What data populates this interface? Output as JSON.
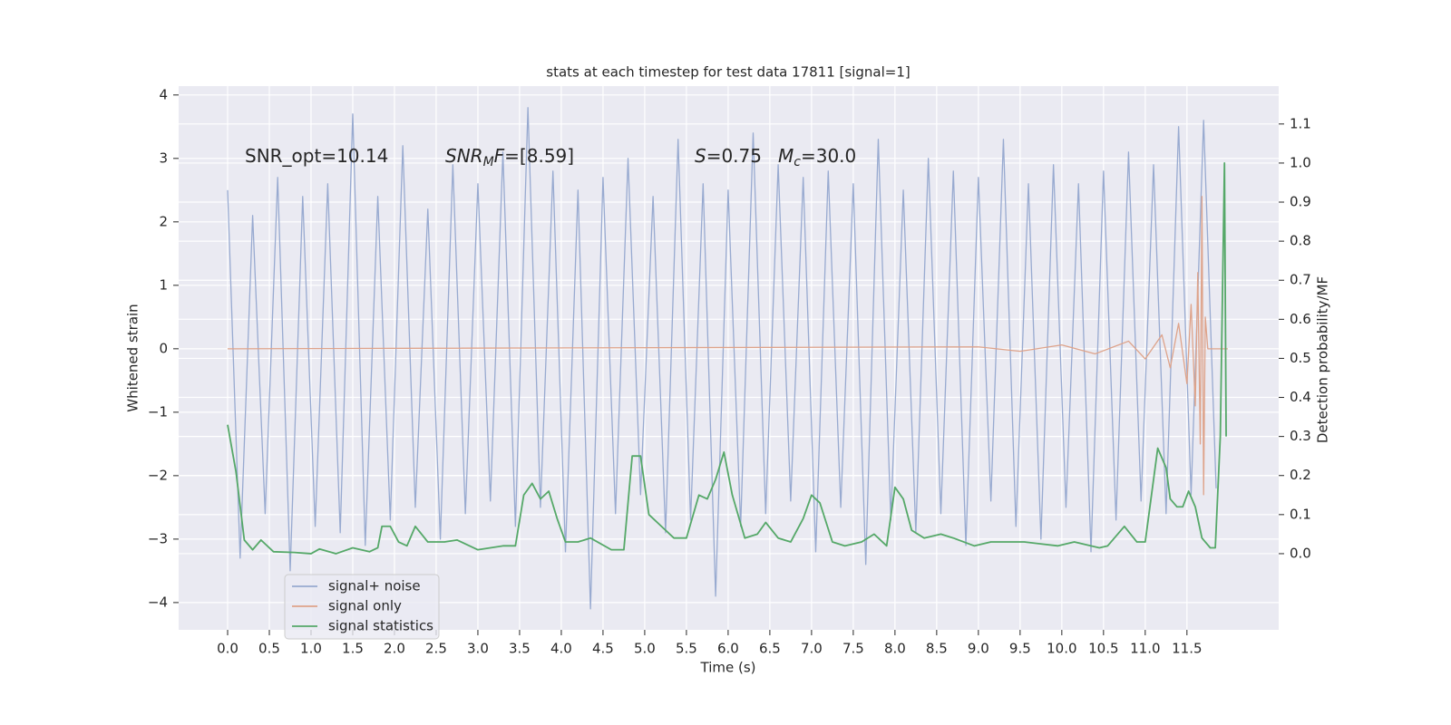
{
  "chart_data": {
    "type": "line",
    "title": "stats at each timestep for test data 17811 [signal=1]",
    "xlabel": "Time (s)",
    "ylabel": "Whitened strain",
    "y2label": "Detection probability/MF",
    "annotations": [
      {
        "parts": [
          {
            "text": "SNR_opt=10.14"
          }
        ]
      },
      {
        "parts": [
          {
            "text": "SNR",
            "italic": true
          },
          {
            "text": "M",
            "italic": true,
            "sub": true
          },
          {
            "text": "F",
            "italic": true
          },
          {
            "text": "=[8.59]"
          }
        ]
      },
      {
        "parts": [
          {
            "text": "S",
            "italic": true
          },
          {
            "text": "=0.75"
          }
        ]
      },
      {
        "parts": [
          {
            "text": "M",
            "italic": true
          },
          {
            "text": "c",
            "italic": true,
            "sub": true
          },
          {
            "text": "=30.0"
          }
        ]
      }
    ],
    "xlim": [
      -0.587,
      12.6
    ],
    "ylim": [
      -4.43,
      4.14
    ],
    "y2lim": [
      -0.195,
      1.197
    ],
    "xticks": [
      {
        "value": 0,
        "label": "0.0"
      },
      {
        "value": 0.5,
        "label": "0.5"
      },
      {
        "value": 1,
        "label": "1.0"
      },
      {
        "value": 1.5,
        "label": "1.5"
      },
      {
        "value": 2,
        "label": "2.0"
      },
      {
        "value": 2.5,
        "label": "2.5"
      },
      {
        "value": 3,
        "label": "3.0"
      },
      {
        "value": 3.5,
        "label": "3.5"
      },
      {
        "value": 4,
        "label": "4.0"
      },
      {
        "value": 4.5,
        "label": "4.5"
      },
      {
        "value": 5,
        "label": "5.0"
      },
      {
        "value": 5.5,
        "label": "5.5"
      },
      {
        "value": 6,
        "label": "6.0"
      },
      {
        "value": 6.5,
        "label": "6.5"
      },
      {
        "value": 7,
        "label": "7.0"
      },
      {
        "value": 7.5,
        "label": "7.5"
      },
      {
        "value": 8,
        "label": "8.0"
      },
      {
        "value": 8.5,
        "label": "8.5"
      },
      {
        "value": 9,
        "label": "9.0"
      },
      {
        "value": 9.5,
        "label": "9.5"
      },
      {
        "value": 10,
        "label": "10.0"
      },
      {
        "value": 10.5,
        "label": "10.5"
      },
      {
        "value": 11,
        "label": "11.0"
      },
      {
        "value": 11.5,
        "label": "11.5"
      }
    ],
    "yticks": [
      {
        "value": -4,
        "label": "−4"
      },
      {
        "value": -3,
        "label": "−3"
      },
      {
        "value": -2,
        "label": "−2"
      },
      {
        "value": -1,
        "label": "−1"
      },
      0,
      1,
      2,
      3,
      4
    ],
    "y2ticks": [
      {
        "value": 0,
        "label": "0.0"
      },
      {
        "value": 0.1,
        "label": "0.1"
      },
      {
        "value": 0.2,
        "label": "0.2"
      },
      {
        "value": 0.3,
        "label": "0.3"
      },
      {
        "value": 0.4,
        "label": "0.4"
      },
      {
        "value": 0.5,
        "label": "0.5"
      },
      {
        "value": 0.6,
        "label": "0.6"
      },
      {
        "value": 0.7,
        "label": "0.7"
      },
      {
        "value": 0.8,
        "label": "0.8"
      },
      {
        "value": 0.9,
        "label": "0.9"
      },
      {
        "value": 1,
        "label": "1.0"
      },
      {
        "value": 1.1,
        "label": "1.1"
      }
    ],
    "grid": true,
    "legend": "lower left",
    "series": [
      {
        "name": "signal+ noise",
        "color": "#98aad0",
        "x": [
          0,
          0.15,
          0.3,
          0.45,
          0.6,
          0.75,
          0.9,
          1.05,
          1.2,
          1.35,
          1.5,
          1.65,
          1.8,
          1.95,
          2.1,
          2.25,
          2.4,
          2.55,
          2.7,
          2.85,
          3,
          3.15,
          3.3,
          3.45,
          3.6,
          3.75,
          3.9,
          4.05,
          4.2,
          4.35,
          4.5,
          4.65,
          4.8,
          4.95,
          5.1,
          5.25,
          5.4,
          5.55,
          5.7,
          5.85,
          6,
          6.15,
          6.3,
          6.45,
          6.6,
          6.75,
          6.9,
          7.05,
          7.2,
          7.35,
          7.5,
          7.65,
          7.8,
          7.95,
          8.1,
          8.25,
          8.4,
          8.55,
          8.7,
          8.85,
          9,
          9.15,
          9.3,
          9.45,
          9.6,
          9.75,
          9.9,
          10.05,
          10.2,
          10.35,
          10.5,
          10.65,
          10.8,
          10.95,
          11.1,
          11.25,
          11.4,
          11.55,
          11.7,
          11.85
        ],
        "values": [
          2.5,
          -3.3,
          2.1,
          -2.6,
          2.7,
          -3.5,
          2.4,
          -2.8,
          2.6,
          -2.9,
          3.7,
          -3.1,
          2.4,
          -2.7,
          3.2,
          -2.5,
          2.2,
          -3.0,
          2.9,
          -2.6,
          2.6,
          -2.4,
          3.1,
          -2.8,
          3.8,
          -2.5,
          2.8,
          -3.2,
          2.5,
          -4.1,
          2.7,
          -2.6,
          3.0,
          -2.3,
          2.4,
          -2.9,
          3.3,
          -2.7,
          2.6,
          -3.9,
          2.5,
          -2.8,
          3.4,
          -2.6,
          2.9,
          -2.4,
          2.7,
          -3.2,
          2.8,
          -2.5,
          2.6,
          -3.4,
          3.3,
          -2.7,
          2.5,
          -2.9,
          3.0,
          -2.6,
          2.8,
          -3.1,
          2.7,
          -2.4,
          3.3,
          -2.8,
          2.6,
          -3.0,
          2.9,
          -2.5,
          2.6,
          -3.2,
          2.8,
          -2.7,
          3.1,
          -2.4,
          2.9,
          -2.6,
          3.5,
          -2.3,
          3.6,
          -2.2
        ]
      },
      {
        "name": "signal only",
        "color": "#dea38a",
        "x": [
          0,
          9.0,
          9.5,
          10.0,
          10.4,
          10.8,
          11.0,
          11.2,
          11.3,
          11.4,
          11.5,
          11.55,
          11.6,
          11.63,
          11.66,
          11.68,
          11.7,
          11.72,
          11.75,
          11.99
        ],
        "values": [
          0,
          0.03,
          -0.04,
          0.06,
          -0.08,
          0.12,
          -0.16,
          0.22,
          -0.3,
          0.4,
          -0.55,
          0.7,
          -0.9,
          1.2,
          -1.5,
          2.4,
          -2.3,
          0.5,
          0,
          0
        ]
      },
      {
        "name": "signal statistics",
        "color": "#55a868",
        "axis": "y2",
        "x": [
          0,
          0.1,
          0.2,
          0.3,
          0.4,
          0.55,
          0.8,
          1.0,
          1.1,
          1.3,
          1.5,
          1.7,
          1.8,
          1.85,
          1.95,
          2.05,
          2.15,
          2.25,
          2.4,
          2.6,
          2.75,
          3.0,
          3.3,
          3.45,
          3.55,
          3.65,
          3.75,
          3.85,
          3.95,
          4.05,
          4.2,
          4.35,
          4.6,
          4.75,
          4.85,
          4.95,
          5.05,
          5.2,
          5.35,
          5.5,
          5.65,
          5.75,
          5.85,
          5.95,
          6.05,
          6.2,
          6.35,
          6.45,
          6.6,
          6.75,
          6.9,
          7.0,
          7.1,
          7.25,
          7.4,
          7.6,
          7.75,
          7.9,
          8.0,
          8.1,
          8.2,
          8.35,
          8.55,
          8.7,
          8.95,
          9.15,
          9.55,
          9.95,
          10.15,
          10.45,
          10.55,
          10.75,
          10.9,
          11.0,
          11.15,
          11.25,
          11.3,
          11.38,
          11.45,
          11.52,
          11.6,
          11.68,
          11.78,
          11.84,
          11.9,
          11.95,
          11.97
        ],
        "values": [
          0.33,
          0.21,
          0.035,
          0.01,
          0.035,
          0.005,
          0.003,
          0.0,
          0.012,
          0.0,
          0.015,
          0.005,
          0.015,
          0.07,
          0.07,
          0.03,
          0.02,
          0.07,
          0.03,
          0.03,
          0.035,
          0.01,
          0.02,
          0.02,
          0.15,
          0.18,
          0.14,
          0.16,
          0.09,
          0.03,
          0.03,
          0.04,
          0.01,
          0.01,
          0.25,
          0.25,
          0.1,
          0.07,
          0.04,
          0.04,
          0.15,
          0.14,
          0.19,
          0.26,
          0.15,
          0.04,
          0.05,
          0.08,
          0.04,
          0.03,
          0.09,
          0.15,
          0.13,
          0.03,
          0.02,
          0.03,
          0.05,
          0.02,
          0.17,
          0.14,
          0.06,
          0.04,
          0.05,
          0.04,
          0.02,
          0.03,
          0.03,
          0.02,
          0.03,
          0.015,
          0.02,
          0.07,
          0.03,
          0.03,
          0.27,
          0.22,
          0.14,
          0.12,
          0.12,
          0.16,
          0.12,
          0.04,
          0.015,
          0.015,
          0.3,
          1.0,
          0.3
        ]
      }
    ]
  }
}
